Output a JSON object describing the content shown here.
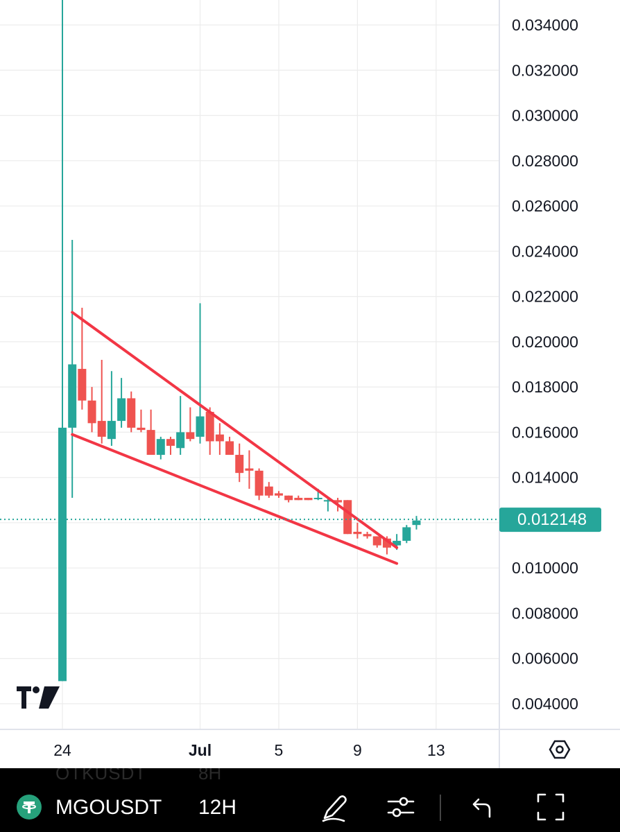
{
  "chart_data": {
    "type": "candlestick",
    "symbol": "MGOUSDT",
    "interval": "12H",
    "ylim": [
      0.003,
      0.0352
    ],
    "y_ticks": [
      "0.034000",
      "0.032000",
      "0.030000",
      "0.028000",
      "0.026000",
      "0.024000",
      "0.022000",
      "0.020000",
      "0.018000",
      "0.016000",
      "0.014000",
      "0.012000",
      "0.010000",
      "0.008000",
      "0.006000",
      "0.004000"
    ],
    "x_ticks": [
      {
        "label": "24",
        "bold": false,
        "date": "Jun 24"
      },
      {
        "label": "Jul",
        "bold": true,
        "date": "Jul 1"
      },
      {
        "label": "5",
        "bold": false,
        "date": "Jul 5"
      },
      {
        "label": "9",
        "bold": false,
        "date": "Jul 9"
      },
      {
        "label": "13",
        "bold": false,
        "date": "Jul 13"
      }
    ],
    "x_start": "Jun 24",
    "candle_period_days": 0.5,
    "last_price": "0.012148",
    "last_price_value": 0.012148,
    "colors": {
      "up": "#26a69a",
      "down": "#ef5350",
      "trendline": "#f23645",
      "grid": "#ececec",
      "price_line": "#26a69a"
    },
    "candles": [
      {
        "o": 0.005,
        "h": 0.0352,
        "l": 0.005,
        "c": 0.0162
      },
      {
        "o": 0.0162,
        "h": 0.0245,
        "l": 0.0131,
        "c": 0.019
      },
      {
        "o": 0.0188,
        "h": 0.0215,
        "l": 0.017,
        "c": 0.0174
      },
      {
        "o": 0.0174,
        "h": 0.018,
        "l": 0.016,
        "c": 0.0164
      },
      {
        "o": 0.0165,
        "h": 0.0192,
        "l": 0.0155,
        "c": 0.0158
      },
      {
        "o": 0.0157,
        "h": 0.0187,
        "l": 0.0154,
        "c": 0.0165
      },
      {
        "o": 0.0165,
        "h": 0.0184,
        "l": 0.0162,
        "c": 0.0175
      },
      {
        "o": 0.0175,
        "h": 0.0178,
        "l": 0.016,
        "c": 0.0162
      },
      {
        "o": 0.0162,
        "h": 0.017,
        "l": 0.016,
        "c": 0.0161
      },
      {
        "o": 0.0161,
        "h": 0.017,
        "l": 0.015,
        "c": 0.015
      },
      {
        "o": 0.015,
        "h": 0.0158,
        "l": 0.0148,
        "c": 0.0157
      },
      {
        "o": 0.0157,
        "h": 0.0158,
        "l": 0.015,
        "c": 0.0154
      },
      {
        "o": 0.0153,
        "h": 0.0176,
        "l": 0.015,
        "c": 0.016
      },
      {
        "o": 0.016,
        "h": 0.0171,
        "l": 0.0156,
        "c": 0.0157
      },
      {
        "o": 0.0158,
        "h": 0.0217,
        "l": 0.0155,
        "c": 0.0167
      },
      {
        "o": 0.0169,
        "h": 0.0171,
        "l": 0.015,
        "c": 0.0156
      },
      {
        "o": 0.0159,
        "h": 0.0164,
        "l": 0.015,
        "c": 0.0156
      },
      {
        "o": 0.0156,
        "h": 0.0158,
        "l": 0.015,
        "c": 0.015
      },
      {
        "o": 0.015,
        "h": 0.0155,
        "l": 0.0138,
        "c": 0.0142
      },
      {
        "o": 0.0144,
        "h": 0.0152,
        "l": 0.0135,
        "c": 0.0143
      },
      {
        "o": 0.0143,
        "h": 0.0144,
        "l": 0.013,
        "c": 0.0132
      },
      {
        "o": 0.0136,
        "h": 0.0138,
        "l": 0.0131,
        "c": 0.0132
      },
      {
        "o": 0.0133,
        "h": 0.0134,
        "l": 0.0131,
        "c": 0.0132
      },
      {
        "o": 0.0132,
        "h": 0.0132,
        "l": 0.0129,
        "c": 0.013
      },
      {
        "o": 0.0131,
        "h": 0.0132,
        "l": 0.013,
        "c": 0.013
      },
      {
        "o": 0.0131,
        "h": 0.0131,
        "l": 0.013,
        "c": 0.013
      },
      {
        "o": 0.0131,
        "h": 0.0135,
        "l": 0.013,
        "c": 0.0131
      },
      {
        "o": 0.013,
        "h": 0.0131,
        "l": 0.0125,
        "c": 0.013
      },
      {
        "o": 0.013,
        "h": 0.0131,
        "l": 0.0125,
        "c": 0.0129
      },
      {
        "o": 0.013,
        "h": 0.013,
        "l": 0.0115,
        "c": 0.0115
      },
      {
        "o": 0.0116,
        "h": 0.012,
        "l": 0.0113,
        "c": 0.0115
      },
      {
        "o": 0.0115,
        "h": 0.0116,
        "l": 0.0113,
        "c": 0.0114
      },
      {
        "o": 0.0114,
        "h": 0.0114,
        "l": 0.0109,
        "c": 0.011
      },
      {
        "o": 0.0113,
        "h": 0.0114,
        "l": 0.0106,
        "c": 0.0109
      },
      {
        "o": 0.011,
        "h": 0.0115,
        "l": 0.0108,
        "c": 0.0112
      },
      {
        "o": 0.0112,
        "h": 0.0119,
        "l": 0.0111,
        "c": 0.0118
      },
      {
        "o": 0.0119,
        "h": 0.0123,
        "l": 0.0117,
        "c": 0.0121
      }
    ],
    "trendlines": [
      {
        "x1": "Jun 24 12:00",
        "y1": 0.0213,
        "x2": "Jul 11",
        "y2": 0.0109
      },
      {
        "x1": "Jun 24 12:00",
        "y1": 0.0159,
        "x2": "Jul 11",
        "y2": 0.0102
      }
    ]
  },
  "toolbar": {
    "ghost_symbol": "OTKUSDT",
    "ghost_interval": "8H",
    "symbol_name": "MGOUSDT",
    "interval": "12H",
    "icons": [
      "tether-logo-icon",
      "pencil-icon",
      "sliders-icon",
      "undo-icon",
      "fullscreen-icon"
    ]
  },
  "chart_settings_icon": "settings-hexagon-icon",
  "watermark_icon": "tradingview-logo-icon"
}
